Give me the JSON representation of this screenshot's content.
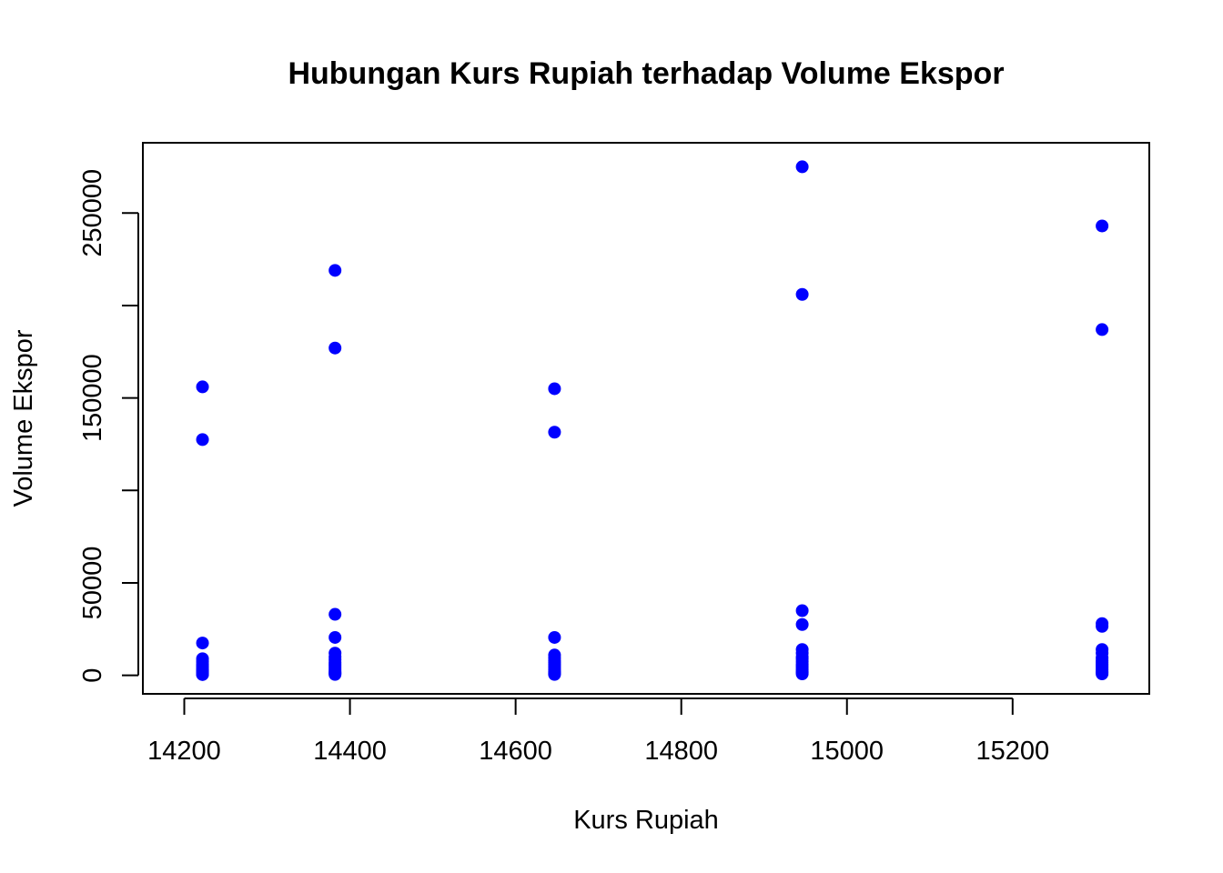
{
  "chart_data": {
    "type": "scatter",
    "title": "Hubungan Kurs Rupiah terhadap Volume Ekspor",
    "xlabel": "Kurs Rupiah",
    "ylabel": "Volume Ekspor",
    "xlim": [
      14150,
      15365
    ],
    "ylim": [
      -10000,
      288000
    ],
    "xticks": [
      14200,
      14400,
      14600,
      14800,
      15000,
      15200
    ],
    "yticks": [
      0,
      50000,
      100000,
      150000,
      200000,
      250000
    ],
    "ytick_labels": [
      "0",
      "50000",
      "",
      "150000",
      "",
      "250000"
    ],
    "grid": false,
    "point_color": "#0000ff",
    "series": [
      {
        "x": [
          14222,
          14222,
          14222,
          14222,
          14222,
          14222,
          14222,
          14222,
          14222,
          14222,
          14222,
          14222,
          14222,
          14222,
          14222,
          14382,
          14382,
          14382,
          14382,
          14382,
          14382,
          14382,
          14382,
          14382,
          14382,
          14382,
          14382,
          14382,
          14382,
          14382,
          14382,
          14647,
          14647,
          14647,
          14647,
          14647,
          14647,
          14647,
          14647,
          14647,
          14647,
          14647,
          14647,
          14647,
          14647,
          14647,
          14946,
          14946,
          14946,
          14946,
          14946,
          14946,
          14946,
          14946,
          14946,
          14946,
          14946,
          14946,
          14946,
          14946,
          14946,
          14946,
          15308,
          15308,
          15308,
          15308,
          15308,
          15308,
          15308,
          15308,
          15308,
          15308,
          15308,
          15308,
          15308,
          15308,
          15308,
          15308
        ],
        "y": [
          156000,
          127500,
          17500,
          9000,
          7500,
          6000,
          5000,
          4000,
          3000,
          2500,
          2000,
          1500,
          1000,
          700,
          400,
          219000,
          177000,
          33000,
          20500,
          12000,
          10000,
          8500,
          7000,
          6000,
          5000,
          4000,
          3000,
          2000,
          1500,
          1000,
          500,
          155000,
          131500,
          20500,
          11000,
          9500,
          8000,
          7000,
          6000,
          5000,
          4000,
          3000,
          2000,
          1500,
          1000,
          500,
          275000,
          206000,
          35000,
          27500,
          14000,
          12000,
          10000,
          9000,
          7500,
          6000,
          5000,
          4000,
          3000,
          2000,
          1500,
          800,
          243000,
          187000,
          28000,
          26500,
          14000,
          12000,
          9500,
          8000,
          7000,
          6000,
          5000,
          4000,
          3000,
          2000,
          1500,
          800
        ]
      }
    ]
  }
}
